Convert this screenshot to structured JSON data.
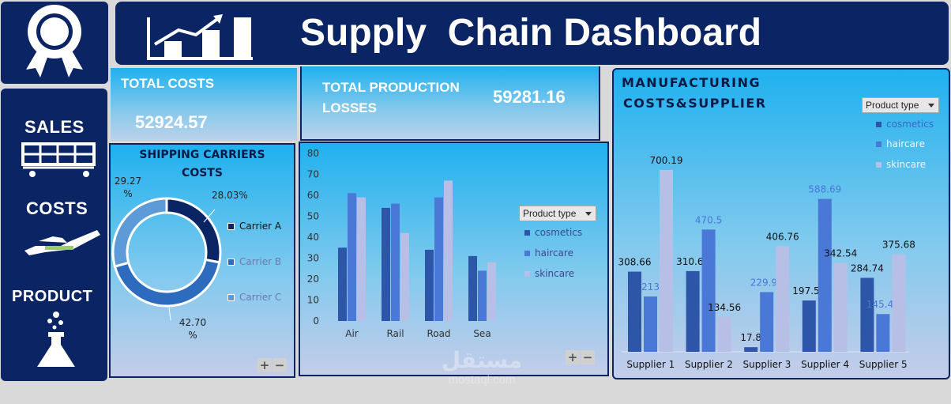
{
  "header": {
    "title": "Supply  Chain Dashboard",
    "icon": "growth-chart-icon"
  },
  "logo": {
    "icon": "award-ribbon-icon"
  },
  "nav": {
    "items": [
      {
        "label": "SALES",
        "icon": "shopping-cart-icon"
      },
      {
        "label": "COSTS",
        "icon": "hand-money-icon"
      },
      {
        "label": "PRODUCT",
        "icon": "flask-icon"
      }
    ]
  },
  "kpis": {
    "total_costs": {
      "label": "TOTAL COSTS",
      "value": "52924.57"
    },
    "production_losses": {
      "label_line1": "TOTAL PRODUCTION",
      "label_line2": "LOSSES",
      "value": "59281.16"
    }
  },
  "filter": {
    "label": "Product type"
  },
  "zoom": {
    "plus": "+",
    "minus": "−"
  },
  "colors": {
    "cosmetics": "#2d55a8",
    "haircare": "#4a78d6",
    "skincare": "#b8bfe6",
    "navy": "#0b2464"
  },
  "chart_data": [
    {
      "type": "pie",
      "title_line1": "SHIPPING CARRIERS",
      "title_line2": "COSTS",
      "slices": [
        {
          "name": "Carrier A",
          "value": 28.03,
          "label": "28.03%",
          "color": "#0b2464"
        },
        {
          "name": "Carrier B",
          "value": 42.7,
          "label_line1": "42.70",
          "label_line2": "%",
          "color": "#2d6bbf"
        },
        {
          "name": "Carrier C",
          "value": 29.27,
          "label_line1": "29.27",
          "label_line2": "%",
          "color": "#5d9bd8"
        }
      ],
      "legend": [
        "Carrier A",
        "Carrier B",
        "Carrier C"
      ]
    },
    {
      "type": "bar",
      "categories": [
        "Air",
        "Rail",
        "Road",
        "Sea"
      ],
      "series": [
        {
          "name": "cosmetics",
          "values": [
            35,
            54,
            34,
            31
          ]
        },
        {
          "name": "haircare",
          "values": [
            61,
            56,
            59,
            24
          ]
        },
        {
          "name": "skincare",
          "values": [
            59,
            42,
            67,
            28
          ]
        }
      ],
      "ylim": [
        0,
        80
      ],
      "yticks": [
        "0",
        "10",
        "20",
        "30",
        "40",
        "50",
        "60",
        "70",
        "80"
      ],
      "grid": false,
      "legend": [
        "cosmetics",
        "haircare",
        "skincare"
      ]
    },
    {
      "type": "bar",
      "title_line1": "MANUFACTURING",
      "title_line2": "COSTS&SUPPLIER",
      "categories": [
        "Supplier 1",
        "Supplier 2",
        "Supplier 3",
        "Supplier 4",
        "Supplier 5"
      ],
      "series": [
        {
          "name": "cosmetics",
          "values": [
            308.66,
            310.62,
            17.8,
            197.53,
            284.74
          ],
          "labels": [
            "308.66",
            "310.62",
            "17.8",
            "197.53",
            "284.74"
          ]
        },
        {
          "name": "haircare",
          "values": [
            213,
            470.5,
            229.96,
            588.69,
            145.41
          ],
          "labels": [
            "213",
            "470.5",
            "229.96",
            "588.69",
            "145.41"
          ]
        },
        {
          "name": "skincare",
          "values": [
            700.19,
            134.56,
            406.76,
            342.54,
            375.68
          ],
          "labels": [
            "700.19",
            "134.56",
            "406.76",
            "342.54",
            "375.68"
          ]
        }
      ],
      "ylim": [
        0,
        800
      ],
      "legend": [
        "cosmetics",
        "haircare",
        "skincare"
      ]
    }
  ],
  "watermark": {
    "text_ar": "مستقل",
    "text": "mostaql.com"
  }
}
